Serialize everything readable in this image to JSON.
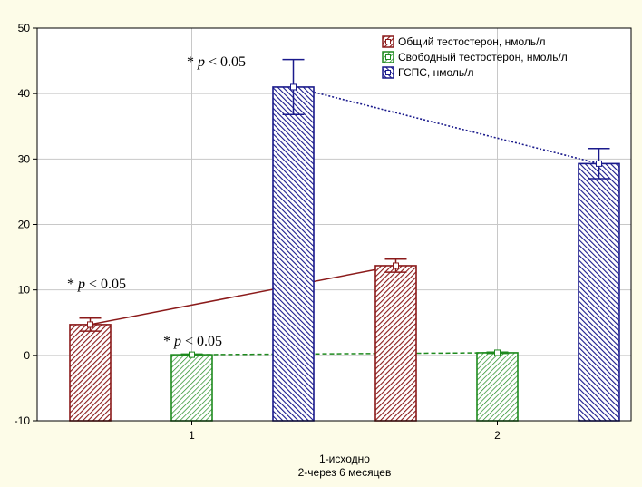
{
  "chart_data": {
    "type": "bar",
    "categories": [
      "1",
      "2"
    ],
    "ylim": [
      -10,
      50
    ],
    "yticks": [
      -10,
      0,
      10,
      20,
      30,
      40,
      50
    ],
    "grid": true,
    "xlabel_lines": [
      "1-исходно",
      "2-через 6 месяцев"
    ],
    "legend_position": "top-right",
    "series": [
      {
        "name": "Общий тестостерон, нмоль/л",
        "values": [
          4.7,
          13.7
        ],
        "errors": [
          1.0,
          1.0
        ],
        "color": "#8b1a1a",
        "line_style": "solid"
      },
      {
        "name": "Свободный тестостерон, нмоль/л",
        "values": [
          0.1,
          0.4
        ],
        "errors": [
          0.1,
          0.1
        ],
        "color": "#1e8a1e",
        "line_style": "dashed"
      },
      {
        "name": "ГСПС, нмоль/л",
        "values": [
          41.0,
          29.3
        ],
        "errors": [
          4.2,
          2.3
        ],
        "color": "#1a1a8c",
        "line_style": "dotted"
      }
    ],
    "annotations": [
      {
        "text": "* p < 0.05",
        "series": 0,
        "category": 0
      },
      {
        "text": "* p < 0.05",
        "series": 1,
        "category": 0
      },
      {
        "text": "* p < 0.05",
        "series": 2,
        "category": 0
      }
    ]
  }
}
